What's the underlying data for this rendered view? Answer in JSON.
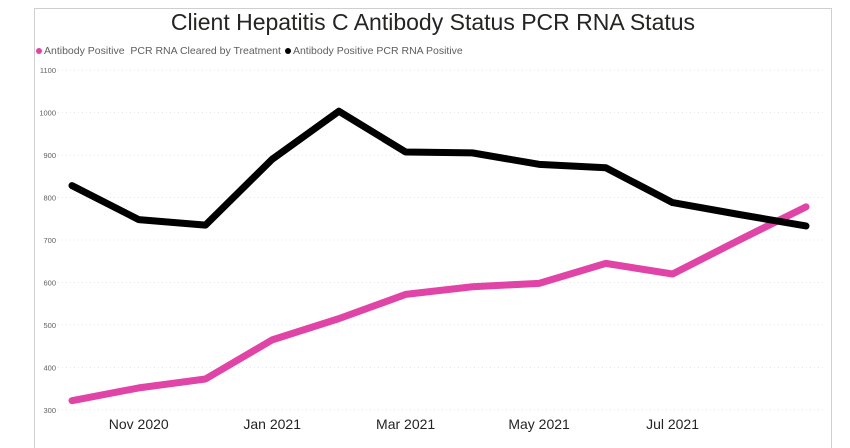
{
  "chart_data": {
    "type": "line",
    "title": "Client Hepatitis C Antibody Status PCR RNA Status",
    "xlabel": "",
    "ylabel": "",
    "ylim": [
      300,
      1100
    ],
    "y_ticks": [
      300,
      400,
      500,
      600,
      700,
      800,
      900,
      1000,
      1100
    ],
    "x_tick_labels": [
      "Nov 2020",
      "Jan 2021",
      "Mar 2021",
      "May 2021",
      "Jul 2021"
    ],
    "x": [
      "Oct 2020",
      "Nov 2020",
      "Dec 2020",
      "Jan 2021",
      "Feb 2021",
      "Mar 2021",
      "Apr 2021",
      "May 2021",
      "Jun 2021",
      "Jul 2021",
      "Aug 2021",
      "Sep 2021"
    ],
    "series": [
      {
        "name": "Antibody Positive  PCR RNA Cleared by Treatment",
        "color": "#e044a7",
        "values": [
          322,
          352,
          373,
          465,
          515,
          572,
          590,
          598,
          645,
          620,
          700,
          778
        ]
      },
      {
        "name": "Antibody Positive PCR RNA Positive",
        "color": "#000000",
        "values": [
          828,
          748,
          735,
          890,
          1003,
          907,
          905,
          878,
          870,
          788,
          760,
          733
        ]
      }
    ],
    "legend_position": "top-left",
    "grid": true
  }
}
